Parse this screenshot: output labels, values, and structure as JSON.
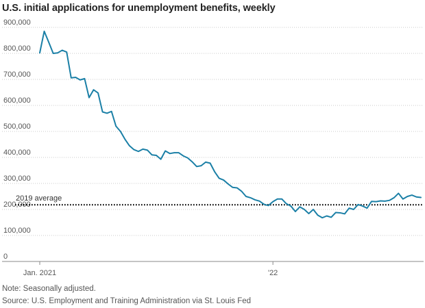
{
  "chart_data": {
    "type": "line",
    "title": "U.S. initial applications for unemployment benefits, weekly",
    "xlabel": "",
    "ylabel": "",
    "ylim": [
      0,
      900000
    ],
    "y_ticks": [
      0,
      100000,
      200000,
      300000,
      400000,
      500000,
      600000,
      700000,
      800000,
      900000
    ],
    "y_tick_labels": [
      "0",
      "100,000",
      "200,000",
      "300,000",
      "400,000",
      "500,000",
      "600,000",
      "700,000",
      "800,000",
      "900,000"
    ],
    "x_tick_labels": [
      {
        "week_index": 0,
        "label": "Jan. 2021"
      },
      {
        "week_index": 52,
        "label": "'22"
      }
    ],
    "series": [
      {
        "name": "Initial claims",
        "color": "#1a7fa6",
        "values": [
          802000,
          885000,
          843000,
          800000,
          802000,
          812000,
          805000,
          706000,
          708000,
          698000,
          703000,
          630000,
          660000,
          648000,
          575000,
          570000,
          577000,
          520000,
          500000,
          470000,
          445000,
          430000,
          423000,
          432000,
          428000,
          410000,
          408000,
          393000,
          425000,
          415000,
          418000,
          418000,
          406000,
          398000,
          383000,
          365000,
          368000,
          382000,
          378000,
          345000,
          320000,
          313000,
          298000,
          285000,
          283000,
          270000,
          250000,
          245000,
          237000,
          232000,
          220000,
          215000,
          230000,
          240000,
          240000,
          222000,
          213000,
          192000,
          210000,
          200000,
          184000,
          200000,
          178000,
          168000,
          175000,
          170000,
          188000,
          187000,
          183000,
          205000,
          200000,
          219000,
          213000,
          205000,
          231000,
          230000,
          233000,
          232000,
          235000,
          245000,
          262000,
          240000,
          250000,
          255000,
          248000,
          246000
        ]
      }
    ],
    "reference_line": {
      "label": "2019 average",
      "value": 218000,
      "color": "#111111"
    }
  },
  "footer": {
    "note": "Note: Seasonally adjusted.",
    "source": "Source: U.S. Employment and Training Administration via St. Louis Fed"
  }
}
